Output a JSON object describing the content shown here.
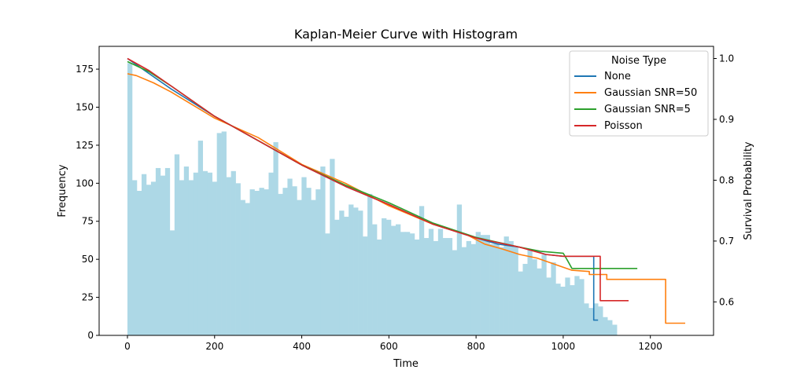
{
  "chart_data": {
    "type": "bar",
    "title": "Kaplan-Meier Curve with Histogram",
    "xlabel": "Time",
    "ylabel": "Frequency",
    "y2label": "Survival Probability",
    "xlim": [
      -65,
      1345
    ],
    "ylim": [
      0,
      190
    ],
    "y2lim": [
      0.545,
      1.02
    ],
    "x_ticks": [
      0,
      200,
      400,
      600,
      800,
      1000,
      1200
    ],
    "y_ticks": [
      0,
      25,
      50,
      75,
      100,
      125,
      150,
      175
    ],
    "y2_ticks": [
      0.6,
      0.7,
      0.8,
      0.9,
      1.0
    ],
    "histogram": {
      "color": "#add8e6",
      "bin_start": 0,
      "bin_width": 10.8,
      "counts": [
        179,
        102,
        95,
        106,
        99,
        101,
        110,
        105,
        110,
        69,
        119,
        102,
        111,
        102,
        107,
        128,
        108,
        107,
        101,
        133,
        134,
        104,
        108,
        100,
        89,
        87,
        96,
        95,
        97,
        96,
        107,
        127,
        93,
        97,
        103,
        98,
        89,
        104,
        97,
        89,
        96,
        111,
        67,
        116,
        76,
        82,
        78,
        86,
        84,
        82,
        65,
        93,
        73,
        63,
        77,
        76,
        72,
        73,
        68,
        68,
        67,
        63,
        85,
        64,
        70,
        62,
        70,
        64,
        64,
        56,
        86,
        58,
        62,
        60,
        68,
        66,
        66,
        60,
        60,
        58,
        65,
        62,
        58,
        42,
        47,
        56,
        50,
        44,
        53,
        38,
        48,
        34,
        32,
        38,
        33,
        39,
        37,
        21,
        18,
        21,
        19,
        12,
        10,
        7
      ]
    },
    "series": [
      {
        "name": "None",
        "color": "#1f77b4",
        "points": [
          [
            0,
            1.0
          ],
          [
            100,
            0.95
          ],
          [
            200,
            0.905
          ],
          [
            300,
            0.865
          ],
          [
            400,
            0.825
          ],
          [
            500,
            0.79
          ],
          [
            600,
            0.76
          ],
          [
            700,
            0.728
          ],
          [
            800,
            0.705
          ],
          [
            850,
            0.695
          ],
          [
            900,
            0.69
          ],
          [
            930,
            0.685
          ],
          [
            960,
            0.678
          ],
          [
            1000,
            0.675
          ],
          [
            1070,
            0.675
          ],
          [
            1070,
            0.57
          ],
          [
            1080,
            0.57
          ]
        ]
      },
      {
        "name": "Gaussian SNR=50",
        "color": "#ff7f0e",
        "points": [
          [
            0,
            0.975
          ],
          [
            20,
            0.972
          ],
          [
            60,
            0.96
          ],
          [
            100,
            0.945
          ],
          [
            200,
            0.902
          ],
          [
            300,
            0.87
          ],
          [
            400,
            0.826
          ],
          [
            500,
            0.795
          ],
          [
            600,
            0.758
          ],
          [
            700,
            0.728
          ],
          [
            780,
            0.71
          ],
          [
            820,
            0.695
          ],
          [
            860,
            0.687
          ],
          [
            900,
            0.678
          ],
          [
            940,
            0.672
          ],
          [
            980,
            0.662
          ],
          [
            1020,
            0.652
          ],
          [
            1060,
            0.65
          ],
          [
            1060,
            0.645
          ],
          [
            1100,
            0.645
          ],
          [
            1100,
            0.637
          ],
          [
            1235,
            0.637
          ],
          [
            1235,
            0.565
          ],
          [
            1280,
            0.565
          ]
        ]
      },
      {
        "name": "Gaussian SNR=5",
        "color": "#2ca02c",
        "points": [
          [
            0,
            0.995
          ],
          [
            50,
            0.978
          ],
          [
            100,
            0.955
          ],
          [
            200,
            0.905
          ],
          [
            300,
            0.865
          ],
          [
            400,
            0.825
          ],
          [
            500,
            0.792
          ],
          [
            600,
            0.763
          ],
          [
            700,
            0.73
          ],
          [
            800,
            0.706
          ],
          [
            900,
            0.69
          ],
          [
            950,
            0.683
          ],
          [
            1000,
            0.68
          ],
          [
            1010,
            0.668
          ],
          [
            1020,
            0.655
          ],
          [
            1170,
            0.655
          ]
        ]
      },
      {
        "name": "Poisson",
        "color": "#d62728",
        "points": [
          [
            0,
            1.0
          ],
          [
            50,
            0.98
          ],
          [
            100,
            0.955
          ],
          [
            200,
            0.905
          ],
          [
            300,
            0.865
          ],
          [
            400,
            0.825
          ],
          [
            500,
            0.79
          ],
          [
            600,
            0.76
          ],
          [
            700,
            0.728
          ],
          [
            800,
            0.705
          ],
          [
            900,
            0.69
          ],
          [
            960,
            0.678
          ],
          [
            1000,
            0.675
          ],
          [
            1085,
            0.675
          ],
          [
            1085,
            0.602
          ],
          [
            1150,
            0.602
          ]
        ]
      }
    ],
    "legend": {
      "title": "Noise Type",
      "placement": "upper right"
    }
  }
}
